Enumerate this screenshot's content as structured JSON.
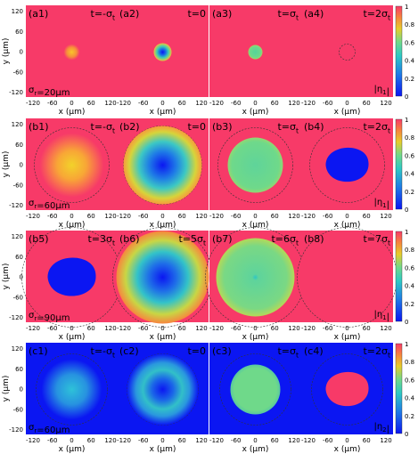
{
  "rows": [
    {
      "sigma_label": "σr=20μm",
      "panels": [
        {
          "label": "(a1)",
          "time": "t=-σt"
        },
        {
          "label": "(a2)",
          "time": "t=0"
        },
        {
          "label": "(a3)",
          "time": "t=σt"
        },
        {
          "label": "(a4)",
          "time": "t=2σt"
        }
      ],
      "eta_label": "|η1|",
      "colorbar_ticks": [
        "1",
        "0.8",
        "0.6",
        "0.4",
        "0.2",
        "0"
      ]
    },
    {
      "sigma_label": "σr=60μm",
      "panels": [
        {
          "label": "(b1)",
          "time": "t=-σt"
        },
        {
          "label": "(b2)",
          "time": "t=0"
        },
        {
          "label": "(b3)",
          "time": "t=σt"
        },
        {
          "label": "(b4)",
          "time": "t=2σt"
        }
      ],
      "eta_label": "|η1|",
      "colorbar_ticks": [
        "1",
        "0.8",
        "0.6",
        "0.4",
        "0.2",
        "0"
      ]
    },
    {
      "sigma_label": "σr=90μm",
      "panels": [
        {
          "label": "(b5)",
          "time": "t=3σt"
        },
        {
          "label": "(b6)",
          "time": "t=5σt"
        },
        {
          "label": "(b7)",
          "time": "t=6σt"
        },
        {
          "label": "(b8)",
          "time": "t=7σt"
        }
      ],
      "eta_label": "|η1|",
      "colorbar_ticks": [
        "1",
        "0.8",
        "0.6",
        "0.4",
        "0.2",
        "0"
      ]
    },
    {
      "sigma_label": "σr=60μm",
      "panels": [
        {
          "label": "(c1)",
          "time": "t=-σt"
        },
        {
          "label": "(c2)",
          "time": "t=0"
        },
        {
          "label": "(c3)",
          "time": "t=σt"
        },
        {
          "label": "(c4)",
          "time": "t=2σt"
        }
      ],
      "eta_label": "|η2|",
      "colorbar_ticks": [
        "1",
        "0.8",
        "0.6",
        "0.4",
        "0.2",
        "0"
      ]
    }
  ],
  "axes": {
    "y_label": "y (μm)",
    "x_label": "x (μm)",
    "y_ticks": [
      "120",
      "60",
      "0",
      "-60",
      "-120"
    ],
    "x_ticks": [
      "-120",
      "-60",
      "0",
      "60",
      "120"
    ]
  },
  "colors": {
    "background_high": "#f73a68",
    "low": "#0b16f2"
  }
}
